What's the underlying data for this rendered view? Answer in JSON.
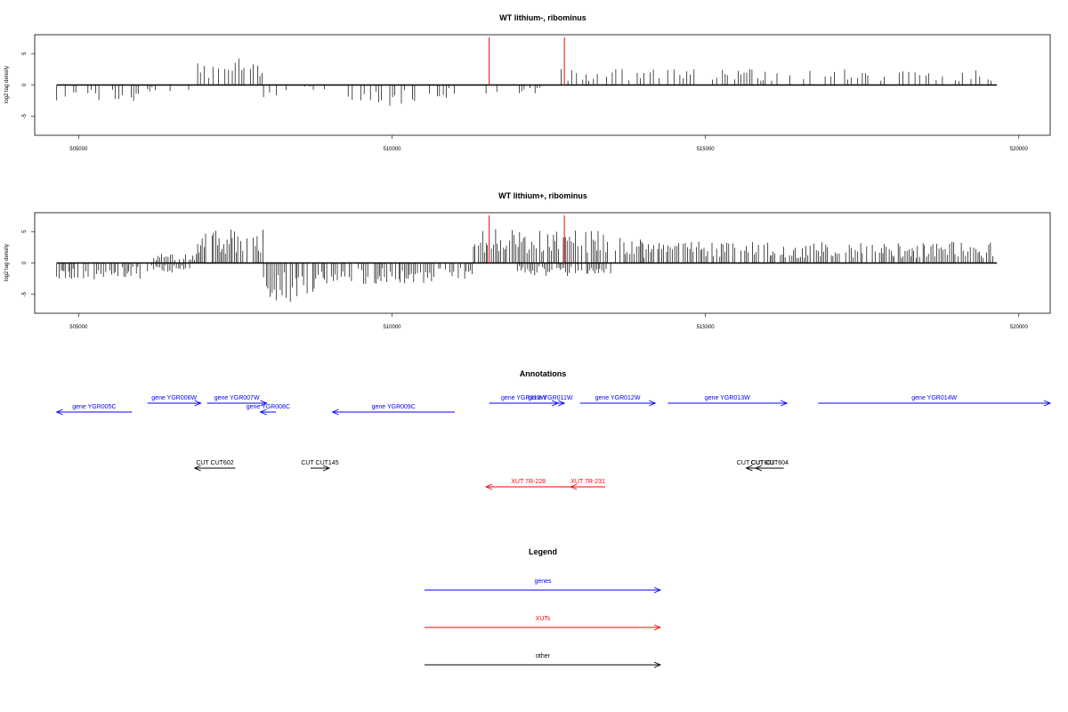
{
  "chart_data": [
    {
      "type": "bar",
      "title": "WT lithium-, ribominus",
      "xlabel": "",
      "ylabel": "log2 tag density",
      "xlim": [
        504300,
        520500
      ],
      "ylim": [
        -8,
        8
      ],
      "x_ticks": [
        "505000",
        "510000",
        "515000",
        "520000"
      ],
      "y_ticks": [
        "-5",
        "0",
        "5"
      ],
      "coverage": [
        {
          "start": 504650,
          "end": 506000,
          "sign": -1,
          "mag": 2.0
        },
        {
          "start": 506100,
          "end": 506850,
          "sign": -1,
          "mag": 0.9
        },
        {
          "start": 506900,
          "end": 507950,
          "sign": 1,
          "mag": 3.4
        },
        {
          "start": 507950,
          "end": 508350,
          "sign": -1,
          "mag": 2.5
        },
        {
          "start": 508400,
          "end": 509000,
          "sign": -1,
          "mag": 0.6
        },
        {
          "start": 509300,
          "end": 510500,
          "sign": -1,
          "mag": 2.8
        },
        {
          "start": 510600,
          "end": 511000,
          "sign": -1,
          "mag": 1.6
        },
        {
          "start": 511500,
          "end": 512600,
          "sign": -1,
          "mag": 1.4
        },
        {
          "start": 512700,
          "end": 519600,
          "sign": 1,
          "mag": 2.0
        }
      ],
      "red_markers": [
        511550,
        512750
      ]
    },
    {
      "type": "bar",
      "title": "WT lithium+, ribominus",
      "xlabel": "",
      "ylabel": "log2 tag density",
      "xlim": [
        504300,
        520500
      ],
      "ylim": [
        -8,
        8
      ],
      "x_ticks": [
        "505000",
        "510000",
        "515000",
        "520000"
      ],
      "y_ticks": [
        "-5",
        "0",
        "5"
      ],
      "coverage": [
        {
          "start": 504650,
          "end": 506000,
          "sign": -1,
          "mag": 2.0
        },
        {
          "start": 506100,
          "end": 506850,
          "sign": -1,
          "mag": 1.2
        },
        {
          "start": 506200,
          "end": 506900,
          "sign": 1,
          "mag": 1.2
        },
        {
          "start": 506900,
          "end": 507950,
          "sign": 1,
          "mag": 4.2
        },
        {
          "start": 507950,
          "end": 508850,
          "sign": -1,
          "mag": 5.0
        },
        {
          "start": 508850,
          "end": 511300,
          "sign": -1,
          "mag": 2.6
        },
        {
          "start": 511300,
          "end": 514000,
          "sign": 1,
          "mag": 4.2
        },
        {
          "start": 512000,
          "end": 513500,
          "sign": -1,
          "mag": 1.6
        },
        {
          "start": 514000,
          "end": 519600,
          "sign": 1,
          "mag": 2.6
        }
      ],
      "red_markers": [
        511550,
        512750
      ]
    }
  ],
  "annotations": {
    "title": "Annotations",
    "features": [
      {
        "label": "gene YGR005C",
        "start": 504650,
        "end": 505850,
        "strand": "-",
        "color": "#0000ff",
        "row": 2
      },
      {
        "label": "gene YGR006W",
        "start": 506100,
        "end": 506950,
        "strand": "+",
        "color": "#0000ff",
        "row": 1
      },
      {
        "label": "gene YGR007W",
        "start": 507050,
        "end": 508000,
        "strand": "+",
        "color": "#0000ff",
        "row": 1
      },
      {
        "label": "gene YGR008C",
        "start": 507900,
        "end": 508150,
        "strand": "-",
        "color": "#0000ff",
        "row": 2
      },
      {
        "label": "gene YGR009C",
        "start": 509050,
        "end": 511000,
        "strand": "-",
        "color": "#0000ff",
        "row": 2
      },
      {
        "label": "gene YGR010W",
        "start": 511550,
        "end": 512650,
        "strand": "+",
        "color": "#0000ff",
        "row": 1
      },
      {
        "label": "gene YGR011W",
        "start": 512300,
        "end": 512750,
        "strand": "+",
        "color": "#0000ff",
        "row": 1
      },
      {
        "label": "gene YGR012W",
        "start": 513000,
        "end": 514200,
        "strand": "+",
        "color": "#0000ff",
        "row": 1
      },
      {
        "label": "gene YGR013W",
        "start": 514400,
        "end": 516300,
        "strand": "+",
        "color": "#0000ff",
        "row": 1
      },
      {
        "label": "gene YGR014W",
        "start": 516800,
        "end": 520500,
        "strand": "+",
        "color": "#0000ff",
        "row": 1
      },
      {
        "label": "CUT CUT602",
        "start": 506850,
        "end": 507500,
        "strand": "-",
        "color": "#000000",
        "row": 3
      },
      {
        "label": "CUT CUT145",
        "start": 508700,
        "end": 509000,
        "strand": "+",
        "color": "#000000",
        "row": 3
      },
      {
        "label": "CUT CUT603",
        "start": 515650,
        "end": 515950,
        "strand": "-",
        "color": "#000000",
        "row": 3
      },
      {
        "label": "CUT CUT604",
        "start": 515800,
        "end": 516250,
        "strand": "-",
        "color": "#000000",
        "row": 3
      },
      {
        "label": "XUT 7R-228",
        "start": 511500,
        "end": 512850,
        "strand": "-",
        "color": "#ff0000",
        "row": 4
      },
      {
        "label": "XUT 7R-231",
        "start": 512850,
        "end": 513400,
        "strand": "-",
        "color": "#ff0000",
        "row": 4
      }
    ]
  },
  "legend": {
    "title": "Legend",
    "items": [
      {
        "label": "genes",
        "color": "#0000ff"
      },
      {
        "label": "XUTs",
        "color": "#ff0000"
      },
      {
        "label": "other",
        "color": "#000000"
      }
    ]
  }
}
